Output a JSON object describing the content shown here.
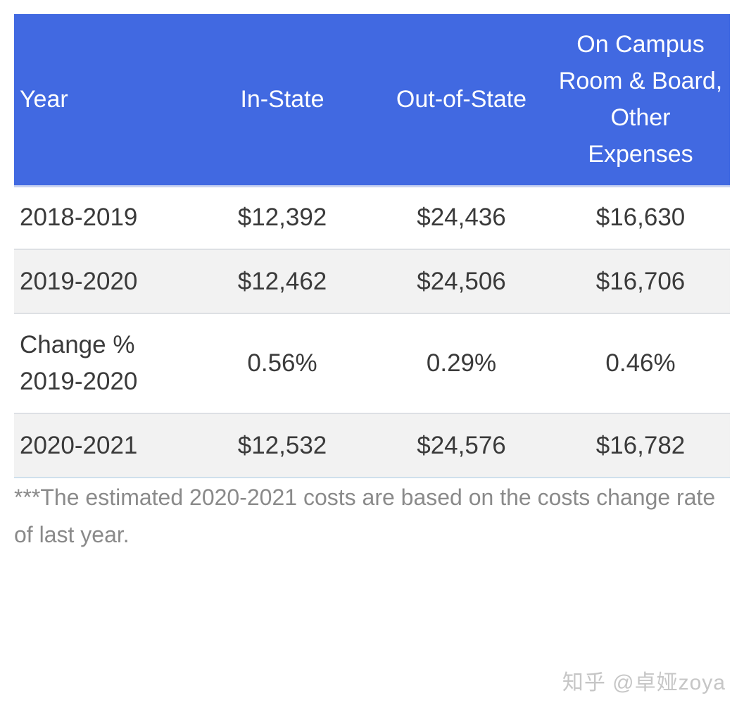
{
  "table": {
    "headers": {
      "year": "Year",
      "in_state": "In-State",
      "out_of_state": "Out-of-State",
      "room_board": "On Campus Room & Board, Other Expenses"
    },
    "rows": [
      {
        "year": "2018-2019",
        "in_state": "$12,392",
        "out_of_state": "$24,436",
        "room_board": "$16,630"
      },
      {
        "year": "2019-2020",
        "in_state": "$12,462",
        "out_of_state": "$24,506",
        "room_board": "$16,706"
      },
      {
        "year": "Change % 2019-2020",
        "in_state": "0.56%",
        "out_of_state": "0.29%",
        "room_board": "0.46%"
      },
      {
        "year": "2020-2021",
        "in_state": "$12,532",
        "out_of_state": "$24,576",
        "room_board": "$16,782"
      }
    ]
  },
  "footnote": "***The estimated 2020-2021 costs are based on the costs change rate of last year.",
  "watermark": "知乎 @卓娅zoya",
  "colors": {
    "header_background": "#4169e1",
    "header_text": "#ffffff",
    "alt_row_background": "#f2f2f2"
  }
}
